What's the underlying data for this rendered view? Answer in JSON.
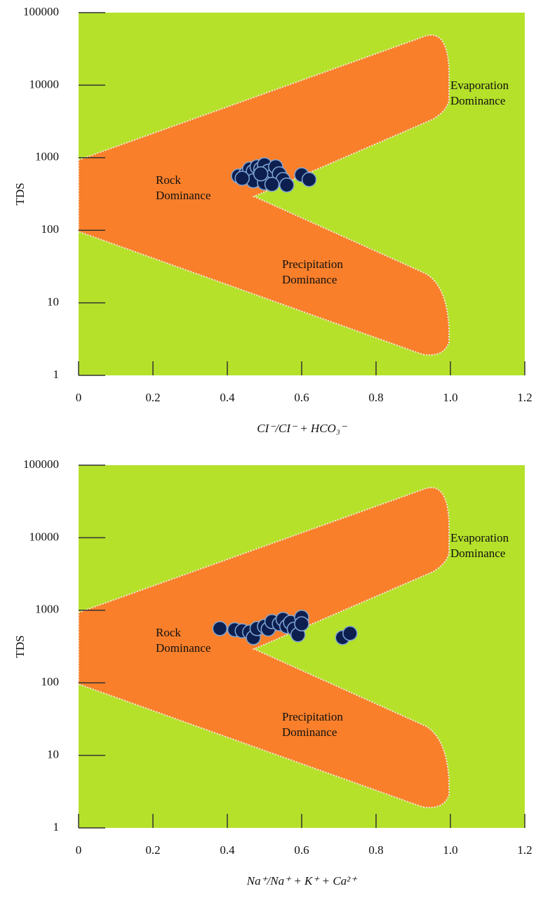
{
  "chart_data": [
    {
      "type": "scatter",
      "log_y": true,
      "y_label": "TDS",
      "x_label": "CI⁻/CI⁻ + HCO₃⁻",
      "annotations": [
        [
          "Evaporation",
          "Dominance"
        ],
        [
          "Rock",
          "Dominance"
        ],
        [
          "Precipitation",
          "Dominance"
        ]
      ],
      "x": [
        0.43,
        0.45,
        0.46,
        0.47,
        0.48,
        0.49,
        0.5,
        0.51,
        0.52,
        0.53,
        0.54,
        0.55,
        0.56,
        0.47,
        0.5,
        0.52,
        0.6,
        0.62,
        0.44,
        0.49
      ],
      "values": [
        560,
        600,
        700,
        650,
        750,
        700,
        800,
        650,
        550,
        750,
        600,
        500,
        420,
        480,
        450,
        430,
        580,
        500,
        520,
        600
      ],
      "color": "#0d1f4f",
      "xlim": [
        0,
        1.2
      ],
      "xticks": [
        0,
        0.2,
        0.4,
        0.6,
        0.8,
        {
          "value": 1,
          "label": "1.0"
        },
        1.2
      ],
      "ylim": [
        1,
        100000
      ],
      "yticks": [
        1,
        10,
        100,
        1000,
        10000,
        100000
      ]
    },
    {
      "type": "scatter",
      "log_y": true,
      "y_label": "TDS",
      "x_label": "Na⁺/Na⁺ + K⁺ + Ca²⁺",
      "annotations": [
        [
          "Evaporation",
          "Dominance"
        ],
        [
          "Rock",
          "Dominance"
        ],
        [
          "Precipitation",
          "Dominance"
        ]
      ],
      "x": [
        0.38,
        0.42,
        0.44,
        0.46,
        0.47,
        0.48,
        0.5,
        0.51,
        0.52,
        0.54,
        0.55,
        0.56,
        0.57,
        0.58,
        0.59,
        0.6,
        0.6,
        0.71,
        0.73
      ],
      "values": [
        560,
        540,
        520,
        500,
        420,
        560,
        600,
        550,
        700,
        650,
        750,
        600,
        680,
        550,
        460,
        800,
        650,
        420,
        480
      ],
      "color": "#0d1f4f",
      "xlim": [
        0,
        1.2
      ],
      "xticks": [
        0,
        0.2,
        0.4,
        0.6,
        0.8,
        {
          "value": 1,
          "label": "1.0"
        },
        1.2
      ],
      "ylim": [
        1,
        100000
      ],
      "yticks": [
        1,
        10,
        100,
        1000,
        10000,
        100000
      ]
    }
  ]
}
